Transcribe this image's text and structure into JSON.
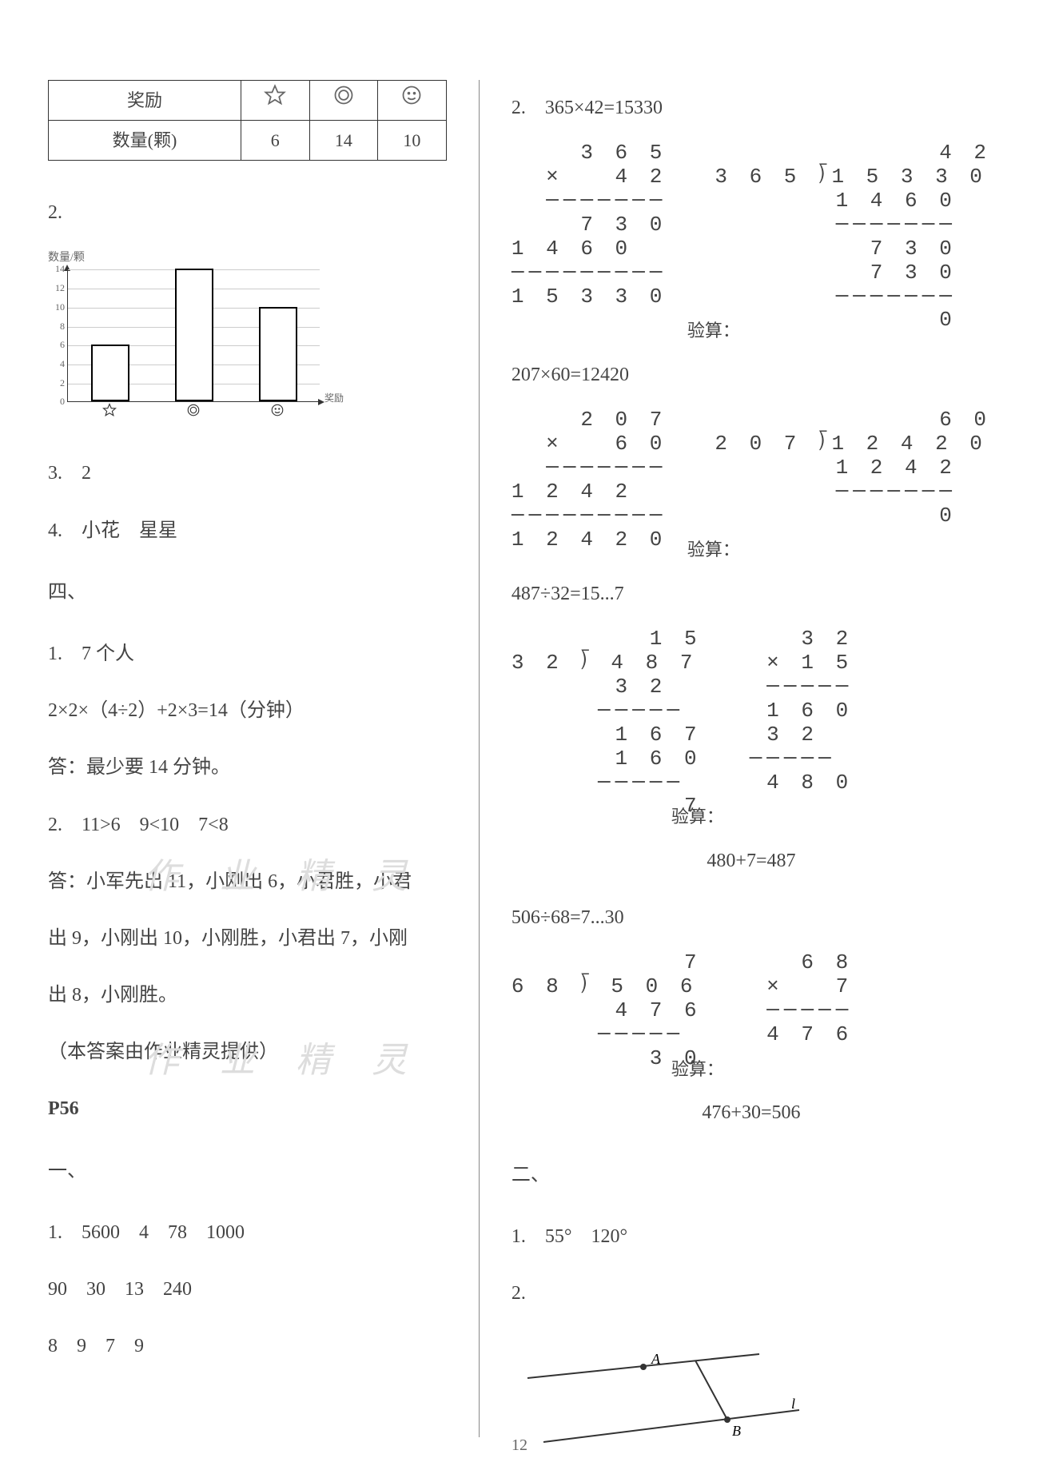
{
  "reward_table": {
    "row1_label": "奖励",
    "row2_label": "数量(颗)",
    "values": [
      "6",
      "14",
      "10"
    ],
    "icons": [
      "star",
      "circle-gear",
      "smile"
    ]
  },
  "chart": {
    "ylabel": "数量/颗",
    "xlabel": "奖励",
    "ymax": 14,
    "ytick_step": 2,
    "ticks": [
      "0",
      "2",
      "4",
      "6",
      "8",
      "10",
      "12",
      "14"
    ],
    "bars": [
      {
        "icon": "star",
        "value": 6
      },
      {
        "icon": "circle-gear",
        "value": 14
      },
      {
        "icon": "smile",
        "value": 10
      }
    ],
    "bar_border": "#000000",
    "grid_color": "#cccccc"
  },
  "left": {
    "q2": "2.",
    "q3": "3.　2",
    "q4": "4.　小花　星星",
    "sec4": "四、",
    "q4_1a": "1.　7 个人",
    "q4_1b": "2×2×（4÷2）+2×3=14（分钟）",
    "q4_1c": "答：最少要 14 分钟。",
    "q4_2a": "2.　11>6　9<10　7<8",
    "q4_2b": "答：小军先出 11，小刚出 6，小君胜，小君",
    "q4_2c": "出 9，小刚出 10，小刚胜，小君出 7，小刚",
    "q4_2d": "出 8，小刚胜。",
    "credit": "（本答案由作业精灵提供）",
    "p56": "P56",
    "sec1": "一、",
    "s1_1": "1.　5600　4　78　1000",
    "s1_2": "90　30　13　240",
    "s1_3": "8　9　7　9"
  },
  "right": {
    "r2": "2.　365×42=15330",
    "r2b": "207×60=12420",
    "r2c": "487÷32=15...7",
    "r2c_check": "480+7=487",
    "r2d": "506÷68=7...30",
    "r2d_check": "476+30=506",
    "sec2": "二、",
    "s2_1": "1.　55°　120°",
    "s2_2": "2.",
    "check_label": "验算："
  },
  "calcs": {
    "mul365": "    3 6 5\n  ×   4 2\n  ───────\n    7 3 0\n1 4 6 0\n─────────\n1 5 3 3 0",
    "div15330": "             4 2\n3 6 5 ⟌1 5 3 3 0\n       1 4 6 0\n       ───────\n         7 3 0\n         7 3 0\n       ───────\n             0",
    "mul207": "    2 0 7\n  ×   6 0\n  ───────\n1 2 4 2\n─────────\n1 2 4 2 0",
    "div12420": "             6 0\n2 0 7 ⟌1 2 4 2 0\n       1 2 4 2\n       ───────\n             0",
    "div487": "        1 5\n3 2 ⟌ 4 8 7\n      3 2\n     ─────\n      1 6 7\n      1 6 0\n     ─────\n          7",
    "mul32x15": "   3 2\n × 1 5\n ─────\n 1 6 0\n 3 2\n─────\n 4 8 0",
    "div506": "          7\n6 8 ⟌ 5 0 6\n      4 7 6\n     ─────\n        3 0",
    "mul68x7": "   6 8\n ×   7\n ─────\n 4 7 6"
  },
  "diagram": {
    "pointA": "A",
    "pointB": "B",
    "lineLabel": "l"
  },
  "watermark": "作 业 精 灵",
  "page_number": "12"
}
